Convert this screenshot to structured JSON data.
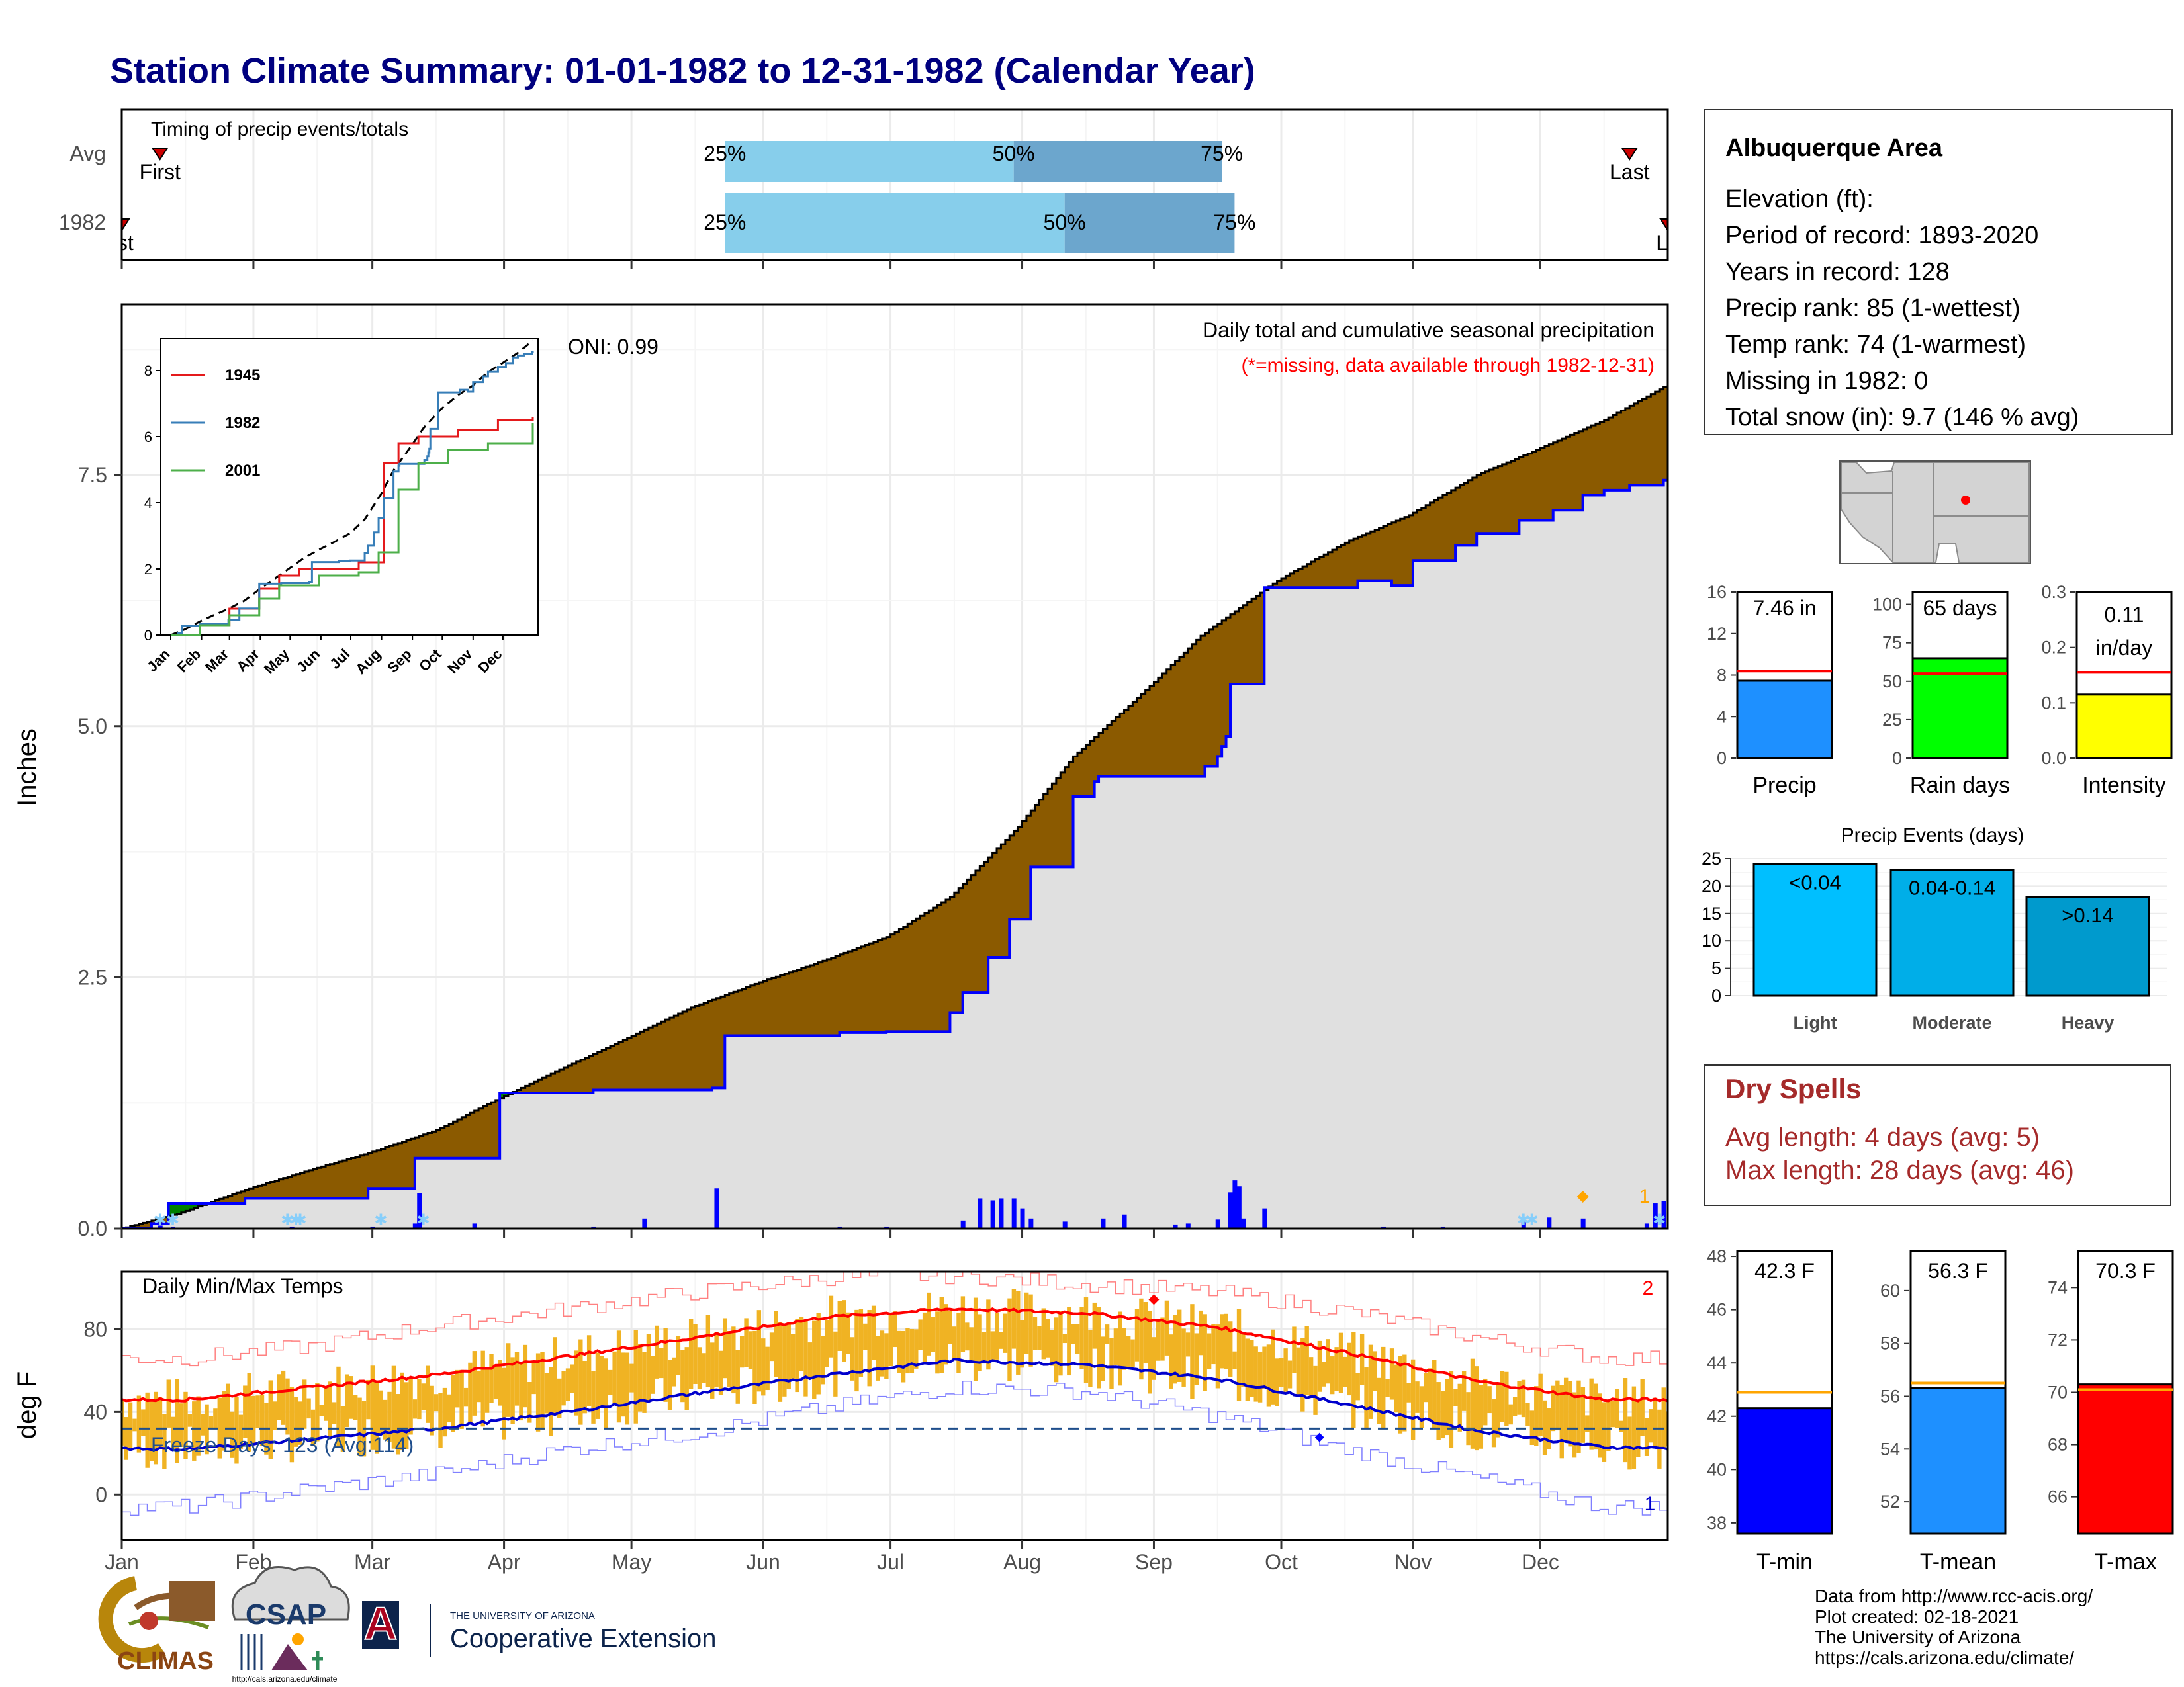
{
  "title": "Station Climate Summary: 01-01-1982 to 12-31-1982 (Calendar Year)",
  "months": [
    "Jan",
    "Feb",
    "Mar",
    "Apr",
    "May",
    "Jun",
    "Jul",
    "Aug",
    "Sep",
    "Oct",
    "Nov",
    "Dec"
  ],
  "colors": {
    "title": "#00007f",
    "precip_surplus": "#8b5a00",
    "precip_deficit": "#008000",
    "normal_fill": "#e0e0e0",
    "cumulative_line": "#0000ff",
    "quartile_light": "#87ceeb",
    "quartile_dark": "#6ca6cd",
    "temp_bar": "#f0b323",
    "tmax_line": "#ff0000",
    "tmin_line": "#0000cc",
    "dry_spells_text": "#a52a2a"
  },
  "timing": {
    "label": "Timing of precip events/totals",
    "rows": [
      "Avg",
      "1982"
    ],
    "first_label": "First",
    "last_label": "Last",
    "first_clipped_label": "rst",
    "last_clipped_label": "La",
    "avg": {
      "first_doy": 10,
      "q25_doy": 143,
      "q50_doy": 211,
      "q75_doy": 260,
      "last_doy": 356
    },
    "y1982": {
      "first_doy": 1,
      "q25_doy": 143,
      "q50_doy": 223,
      "q75_doy": 263,
      "last_doy": 365
    },
    "pct_labels": [
      "25%",
      "50%",
      "75%"
    ]
  },
  "precip_panel": {
    "ylabel": "Inches",
    "yticks": [
      "0.0",
      "2.5",
      "5.0",
      "7.5"
    ],
    "ylim": [
      0,
      9.2
    ],
    "oni": "ONI: 0.99",
    "caption": "Daily total and cumulative seasonal precipitation",
    "missing_note": "(*=missing, data available through 1982-12-31)",
    "marker_count": "1"
  },
  "inset": {
    "yticks": [
      "0",
      "2",
      "4",
      "6",
      "8"
    ],
    "months": [
      "Jan",
      "Feb",
      "Mar",
      "Apr",
      "May",
      "Jun",
      "Jul",
      "Aug",
      "Sep",
      "Oct",
      "Nov",
      "Dec"
    ],
    "legend": [
      {
        "name": "1945",
        "color": "#e41a1c"
      },
      {
        "name": "1982",
        "color": "#377eb8"
      },
      {
        "name": "2001",
        "color": "#4daf4a"
      }
    ]
  },
  "temp_panel": {
    "ylabel": "deg F",
    "title": "Daily Min/Max Temps",
    "yticks": [
      "0",
      "40",
      "80"
    ],
    "ylim": [
      -22,
      108
    ],
    "freeze_label": "Freeze Days: 123 (Avg:114)",
    "freeze_level": 32,
    "record_high_count": "2",
    "record_low_count": "1"
  },
  "info_box": {
    "station": "Albuquerque Area",
    "lines": [
      "Elevation (ft):",
      "Period of record: 1893-2020",
      "Years in record: 128",
      "Precip rank: 85 (1-wettest)",
      "Temp rank: 74 (1-warmest)",
      "Missing in 1982: 0",
      "Total snow (in): 9.7 (146 % avg)"
    ]
  },
  "mini_bars": [
    {
      "label": "Precip",
      "value_text": "7.46 in",
      "value": 7.46,
      "avg": 8.4,
      "ymax": 16,
      "yticks": [
        "0",
        "4",
        "8",
        "12",
        "16"
      ],
      "tickvals": [
        0,
        4,
        8,
        12,
        16
      ],
      "color": "#1e90ff"
    },
    {
      "label": "Rain days",
      "value_text": "65 days",
      "value": 65,
      "avg": 55,
      "ymax": 108,
      "yticks": [
        "0",
        "25",
        "50",
        "75",
        "100"
      ],
      "tickvals": [
        0,
        25,
        50,
        75,
        100
      ],
      "color": "#00ff00"
    },
    {
      "label": "Intensity",
      "value_text": "0.11\nin/day",
      "value_line1": "0.11",
      "value_line2": "in/day",
      "value": 0.115,
      "avg": 0.155,
      "ymax": 0.3,
      "yticks": [
        "0.0",
        "0.1",
        "0.2",
        "0.3"
      ],
      "tickvals": [
        0,
        0.1,
        0.2,
        0.3
      ],
      "color": "#ffff00"
    }
  ],
  "precip_events": {
    "title": "Precip Events (days)",
    "yticks": [
      "0",
      "5",
      "10",
      "15",
      "20",
      "25"
    ],
    "bars": [
      {
        "label": "Light",
        "range": "<0.04",
        "value": 24,
        "color": "#00bfff"
      },
      {
        "label": "Moderate",
        "range": "0.04-0.14",
        "value": 23,
        "color": "#00aee8"
      },
      {
        "label": "Heavy",
        "range": ">0.14",
        "value": 18,
        "color": "#009acd"
      }
    ]
  },
  "dry_spells": {
    "title": "Dry Spells",
    "avg_length": "Avg length: 4 days (avg: 5)",
    "max_length": "Max length: 28 days (avg: 46)"
  },
  "temp_bars": [
    {
      "label": "T-min",
      "value_text": "42.3 F",
      "value": 42.3,
      "avg": 42.9,
      "ymin": 37.6,
      "ymax": 48.2,
      "yticks": [
        "38",
        "40",
        "42",
        "44",
        "46",
        "48"
      ],
      "tickvals": [
        38,
        40,
        42,
        44,
        46,
        48
      ],
      "color": "#0000ff"
    },
    {
      "label": "T-mean",
      "value_text": "56.3 F",
      "value": 56.3,
      "avg": 56.5,
      "ymin": 50.8,
      "ymax": 61.5,
      "yticks": [
        "52",
        "54",
        "56",
        "58",
        "60"
      ],
      "tickvals": [
        52,
        54,
        56,
        58,
        60
      ],
      "color": "#1e90ff"
    },
    {
      "label": "T-max",
      "value_text": "70.3 F",
      "value": 70.3,
      "avg": 70.1,
      "ymin": 64.6,
      "ymax": 75.4,
      "yticks": [
        "66",
        "68",
        "70",
        "72",
        "74"
      ],
      "tickvals": [
        66,
        68,
        70,
        72,
        74
      ],
      "color": "#ff0000"
    }
  ],
  "credits": [
    "Data from http://www.rcc-acis.org/",
    "Plot created: 02-18-2021",
    "The University of Arizona",
    "https://cals.arizona.edu/climate/"
  ],
  "logos": {
    "climas": "CLIMAS",
    "csap": "CSAP",
    "csap_url": "http://cals.arizona.edu/climate",
    "ua_small": "THE UNIVERSITY OF ARIZONA",
    "ua_big": "Cooperative Extension",
    "ua_letter": "A"
  },
  "chart_data": {
    "type": "area",
    "title": "Daily total and cumulative seasonal precipitation",
    "ylabel": "Inches",
    "ylim": [
      0,
      9.2
    ],
    "x_unit": "day of year 1982",
    "normal_cumulative": {
      "x": [
        1,
        15,
        31,
        45,
        59,
        75,
        90,
        105,
        120,
        135,
        151,
        165,
        181,
        196,
        212,
        225,
        243,
        255,
        273,
        290,
        304,
        320,
        334,
        350,
        365
      ],
      "y": [
        0,
        0.16,
        0.4,
        0.58,
        0.75,
        0.98,
        1.3,
        1.6,
        1.9,
        2.2,
        2.45,
        2.65,
        2.9,
        3.3,
        4.0,
        4.7,
        5.4,
        5.9,
        6.45,
        6.85,
        7.1,
        7.5,
        7.75,
        8.05,
        8.4
      ]
    },
    "observed_cumulative_1982": {
      "x": [
        1,
        8,
        12,
        30,
        45,
        59,
        75,
        70,
        90,
        105,
        112,
        120,
        140,
        143,
        158,
        170,
        181,
        196,
        199,
        205,
        210,
        215,
        225,
        230,
        231,
        245,
        246,
        256,
        259,
        260,
        261,
        262,
        268,
        270,
        273,
        280,
        290,
        292,
        295,
        300,
        305,
        315,
        320,
        330,
        338,
        345,
        350,
        356,
        364,
        365
      ],
      "y": [
        0,
        0.05,
        0.25,
        0.3,
        0.3,
        0.4,
        0.7,
        0.7,
        1.35,
        1.35,
        1.38,
        1.38,
        1.4,
        1.92,
        1.92,
        1.95,
        1.96,
        2.15,
        2.35,
        2.7,
        3.08,
        3.6,
        4.3,
        4.45,
        4.5,
        4.5,
        4.5,
        4.6,
        4.7,
        4.8,
        4.9,
        5.42,
        5.42,
        6.38,
        6.38,
        6.38,
        6.38,
        6.45,
        6.45,
        6.4,
        6.65,
        6.8,
        6.92,
        7.05,
        7.15,
        7.3,
        7.35,
        7.4,
        7.45,
        7.46
      ]
    },
    "daily_precip": [
      {
        "day": 10,
        "value": 0.03
      },
      {
        "day": 13,
        "value": 0.02
      },
      {
        "day": 41,
        "value": 0.02
      },
      {
        "day": 60,
        "value": 0.02
      },
      {
        "day": 70,
        "value": 0.05
      },
      {
        "day": 71,
        "value": 0.35
      },
      {
        "day": 84,
        "value": 0.05
      },
      {
        "day": 112,
        "value": 0.02
      },
      {
        "day": 124,
        "value": 0.1
      },
      {
        "day": 141,
        "value": 0.4
      },
      {
        "day": 170,
        "value": 0.02
      },
      {
        "day": 181,
        "value": 0.02
      },
      {
        "day": 199,
        "value": 0.08
      },
      {
        "day": 203,
        "value": 0.3
      },
      {
        "day": 206,
        "value": 0.28
      },
      {
        "day": 208,
        "value": 0.3
      },
      {
        "day": 211,
        "value": 0.3
      },
      {
        "day": 213,
        "value": 0.2
      },
      {
        "day": 215,
        "value": 0.1
      },
      {
        "day": 223,
        "value": 0.07
      },
      {
        "day": 232,
        "value": 0.1
      },
      {
        "day": 237,
        "value": 0.14
      },
      {
        "day": 249,
        "value": 0.04
      },
      {
        "day": 252,
        "value": 0.05
      },
      {
        "day": 259,
        "value": 0.09
      },
      {
        "day": 262,
        "value": 0.36
      },
      {
        "day": 263,
        "value": 0.48
      },
      {
        "day": 264,
        "value": 0.42
      },
      {
        "day": 265,
        "value": 0.1
      },
      {
        "day": 270,
        "value": 0.2
      },
      {
        "day": 298,
        "value": 0.02
      },
      {
        "day": 312,
        "value": 0.02
      },
      {
        "day": 331,
        "value": 0.08
      },
      {
        "day": 337,
        "value": 0.11
      },
      {
        "day": 345,
        "value": 0.1
      },
      {
        "day": 360,
        "value": 0.05
      },
      {
        "day": 362,
        "value": 0.25
      },
      {
        "day": 364,
        "value": 0.27
      }
    ],
    "temperature": {
      "avg_max_monthly": [
        46,
        52,
        58,
        67,
        76,
        86,
        90,
        88,
        81,
        69,
        55,
        46
      ],
      "avg_min_monthly": [
        22,
        27,
        32,
        40,
        49,
        58,
        65,
        63,
        56,
        44,
        31,
        23
      ],
      "record_max_monthly": [
        66,
        72,
        82,
        90,
        98,
        105,
        106,
        102,
        98,
        89,
        76,
        66
      ],
      "record_min_monthly": [
        -6,
        3,
        10,
        22,
        30,
        42,
        52,
        50,
        38,
        22,
        8,
        -6
      ],
      "freeze_days_1982": 123,
      "freeze_days_avg": 114
    }
  }
}
